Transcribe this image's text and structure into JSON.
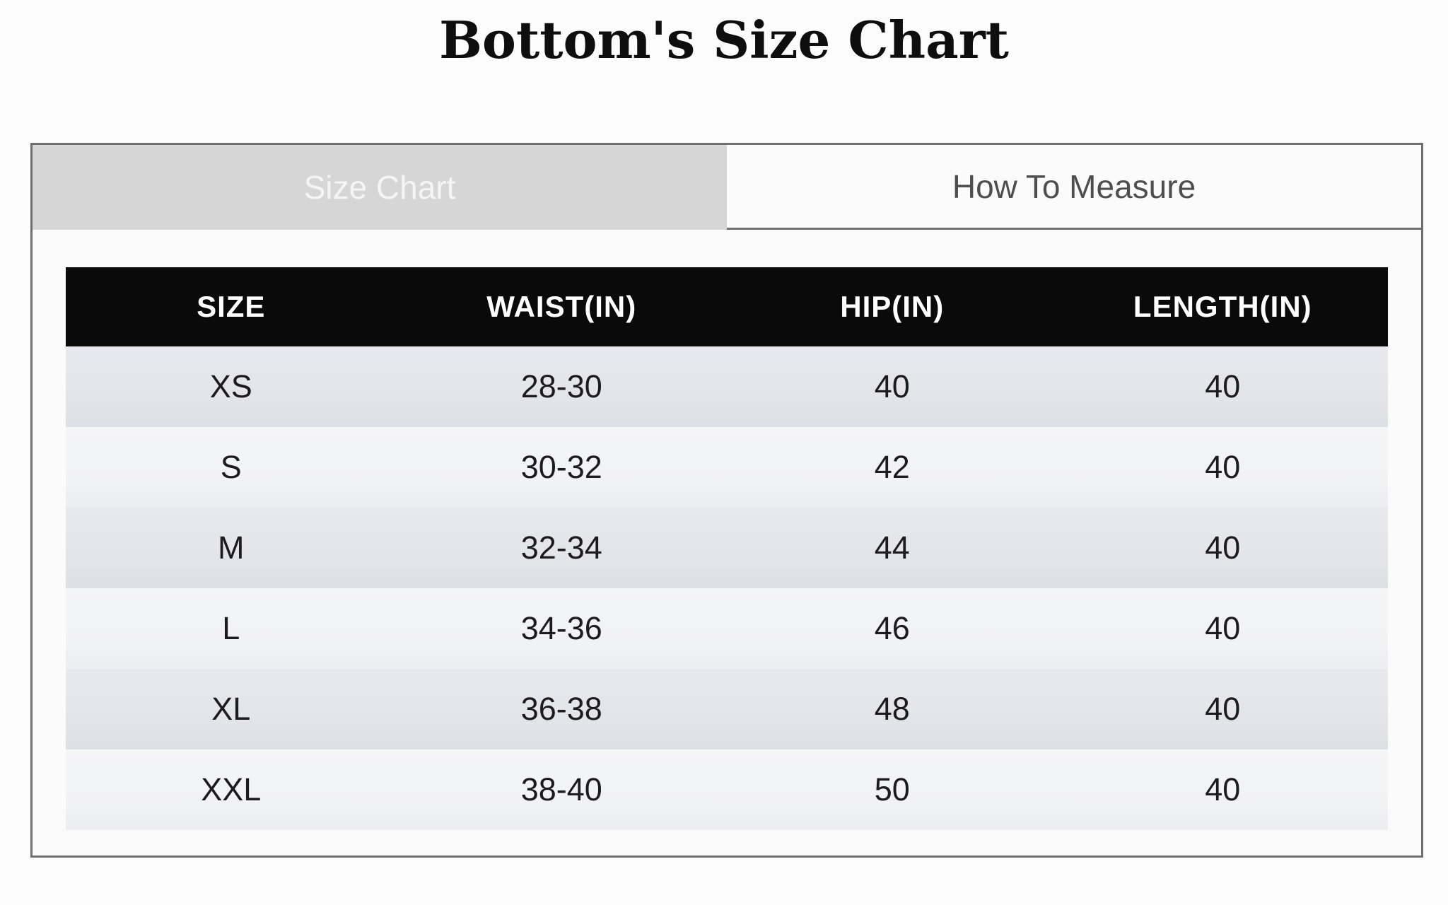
{
  "page": {
    "title": "Bottom's Size Chart"
  },
  "tabs": [
    {
      "label": "Size Chart",
      "active": true
    },
    {
      "label": "How To Measure",
      "active": false
    }
  ],
  "table": {
    "columns": [
      "SIZE",
      "WAIST(IN)",
      "HIP(IN)",
      "LENGTH(IN)"
    ],
    "rows": [
      [
        "XS",
        "28-30",
        "40",
        "40"
      ],
      [
        "S",
        "30-32",
        "42",
        "40"
      ],
      [
        "M",
        "32-34",
        "44",
        "40"
      ],
      [
        "L",
        "34-36",
        "46",
        "40"
      ],
      [
        "XL",
        "36-38",
        "48",
        "40"
      ],
      [
        "XXL",
        "38-40",
        "50",
        "40"
      ]
    ]
  },
  "colors": {
    "page_background": "#fcfcfc",
    "panel_border": "#6f6f6f",
    "active_tab_background": "#d6d6d6",
    "active_tab_text": "#f5f5f5",
    "inactive_tab_text": "#4e4e4e",
    "table_header_background": "#0a0a0a",
    "table_header_text": "#ffffff",
    "row_odd_background": "#e3e5ea",
    "row_even_background": "#f1f2f4",
    "cell_text": "#1c1c1e"
  }
}
